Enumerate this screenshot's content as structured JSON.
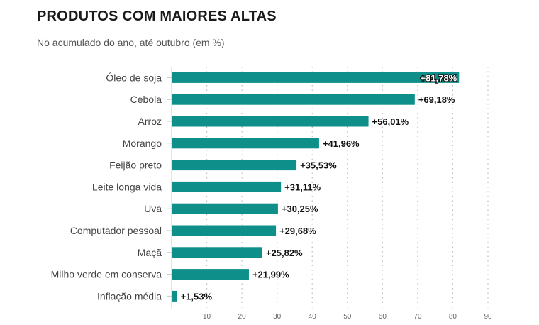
{
  "header": {
    "title": "PRODUTOS COM MAIORES ALTAS",
    "subtitle": "No acumulado do ano, até outubro (em %)"
  },
  "chart_data": {
    "type": "bar",
    "orientation": "horizontal",
    "title": "PRODUTOS COM MAIORES ALTAS",
    "subtitle": "No acumulado do ano, até outubro (em %)",
    "categories": [
      "Óleo de soja",
      "Cebola",
      "Arroz",
      "Morango",
      "Feijão preto",
      "Leite longa vida",
      "Uva",
      "Computador pessoal",
      "Maçã",
      "Milho verde em conserva",
      "Inflação média"
    ],
    "values": [
      81.78,
      69.18,
      56.01,
      41.96,
      35.53,
      31.11,
      30.25,
      29.68,
      25.82,
      21.99,
      1.53
    ],
    "value_labels": [
      "+81,78%",
      "+69,18%",
      "+56,01%",
      "+41,96%",
      "+35,53%",
      "+31,11%",
      "+30,25%",
      "+29,68%",
      "+25,82%",
      "+21,99%",
      "+1,53%"
    ],
    "x_ticks": [
      10,
      20,
      30,
      40,
      50,
      60,
      70,
      80,
      90
    ],
    "xlim": [
      0,
      90
    ],
    "grid": true,
    "bar_color": "#0e8f89"
  }
}
